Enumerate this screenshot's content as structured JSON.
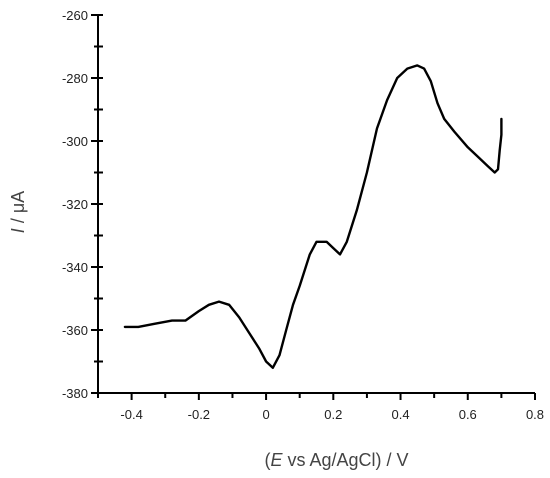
{
  "chart_data": {
    "type": "line",
    "title": "",
    "xlabel_parts": {
      "italic": "E",
      "rest": " vs Ag/AgCl) / V",
      "open": "("
    },
    "ylabel_parts": {
      "italic": "I",
      "rest": " / μA"
    },
    "xlim": [
      -0.5,
      0.8
    ],
    "ylim": [
      -380,
      -260
    ],
    "x_ticks": [
      -0.4,
      -0.2,
      0,
      0.2,
      0.4,
      0.6,
      0.8
    ],
    "x_tick_labels": [
      "-0.4",
      "-0.2",
      "0",
      "0.2",
      "0.4",
      "0.6",
      "0.8"
    ],
    "y_ticks": [
      -380,
      -360,
      -340,
      -320,
      -300,
      -280,
      -260
    ],
    "y_tick_labels": [
      "-380",
      "-360",
      "-340",
      "-320",
      "-300",
      "-280",
      "-260"
    ],
    "grid": false,
    "series": [
      {
        "x": [
          -0.42,
          -0.38,
          -0.33,
          -0.28,
          -0.24,
          -0.2,
          -0.17,
          -0.14,
          -0.11,
          -0.08,
          -0.05,
          -0.02,
          0.0,
          0.02,
          0.04,
          0.06,
          0.08,
          0.1,
          0.13,
          0.15,
          0.18,
          0.2,
          0.22,
          0.24,
          0.27,
          0.3,
          0.33,
          0.36,
          0.39,
          0.42,
          0.45,
          0.47,
          0.49,
          0.51,
          0.53,
          0.56,
          0.6,
          0.63,
          0.66,
          0.68,
          0.69,
          0.695,
          0.7,
          0.7
        ],
        "y": [
          -359,
          -359,
          -358,
          -357,
          -357,
          -354,
          -352,
          -351,
          -352,
          -356,
          -361,
          -366,
          -370,
          -372,
          -368,
          -360,
          -352,
          -346,
          -336,
          -332,
          -332,
          -334,
          -336,
          -332,
          -322,
          -310,
          -296,
          -287,
          -280,
          -277,
          -276,
          -277,
          -281,
          -288,
          -293,
          -297,
          -302,
          -305,
          -308,
          -310,
          -309,
          -303,
          -298,
          -293
        ]
      }
    ]
  }
}
